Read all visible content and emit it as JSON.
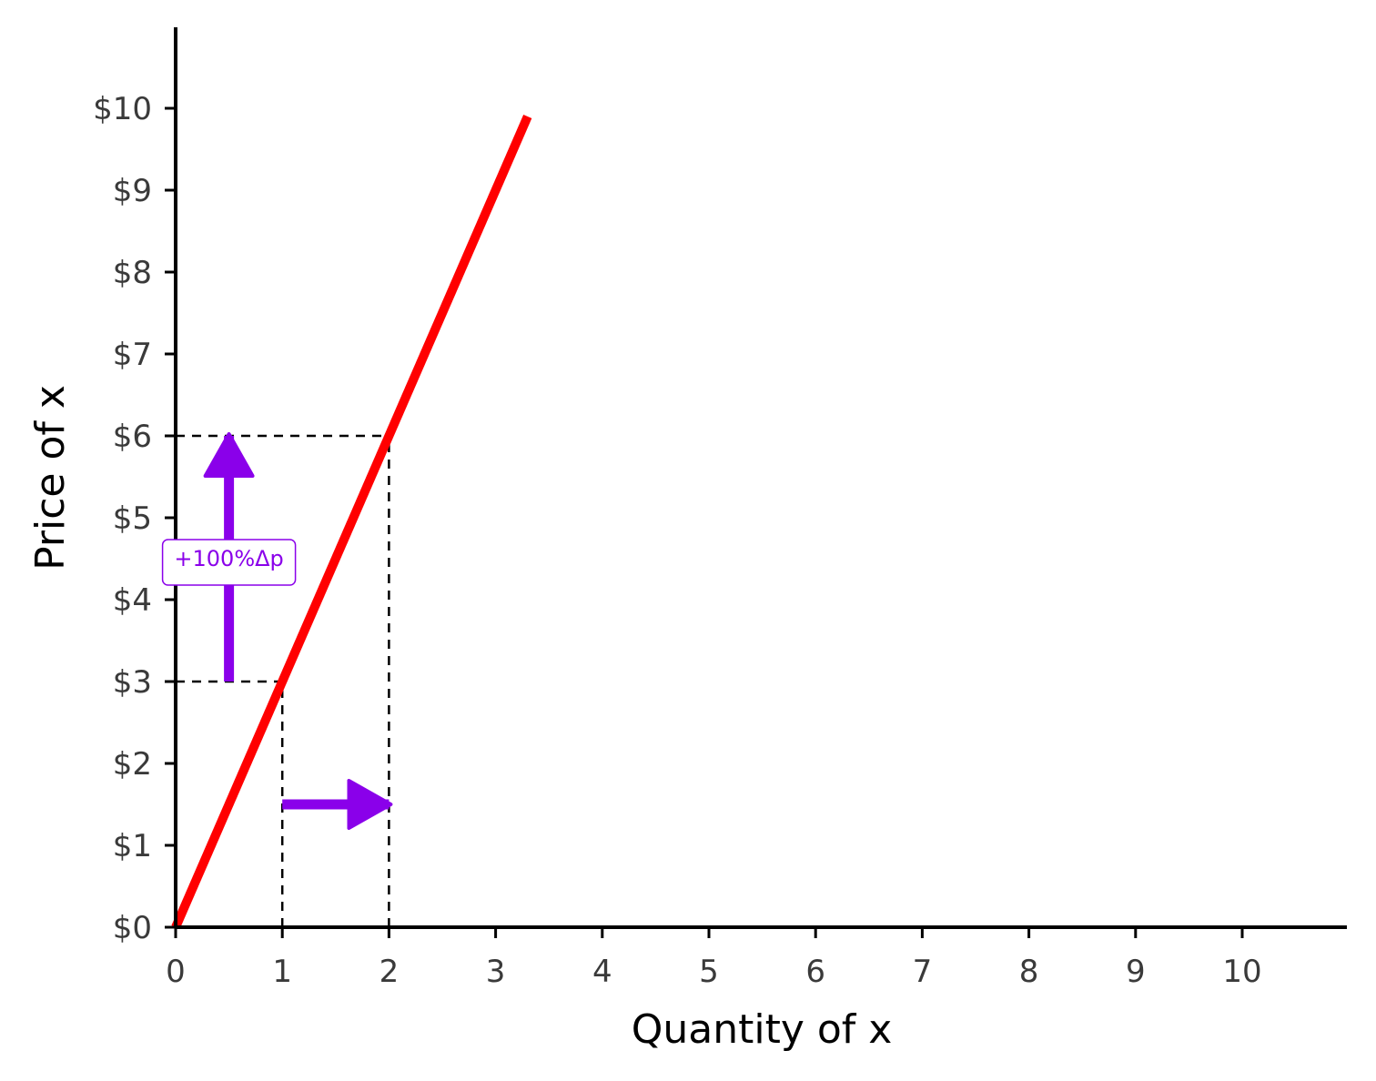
{
  "chart_data": {
    "type": "line",
    "xlabel": "Quantity of x",
    "ylabel": "Price of x",
    "xlim": [
      0,
      11
    ],
    "ylim": [
      0,
      11
    ],
    "x_ticks": [
      0,
      1,
      2,
      3,
      4,
      5,
      6,
      7,
      8,
      9,
      10
    ],
    "x_tick_labels": [
      "0",
      "1",
      "2",
      "3",
      "4",
      "5",
      "6",
      "7",
      "8",
      "9",
      "10"
    ],
    "y_ticks": [
      0,
      1,
      2,
      3,
      4,
      5,
      6,
      7,
      8,
      9,
      10
    ],
    "y_tick_labels": [
      "$0",
      "$1",
      "$2",
      "$3",
      "$4",
      "$5",
      "$6",
      "$7",
      "$8",
      "$9",
      "$10"
    ],
    "grid": false,
    "series": [
      {
        "x": [
          0,
          3.3
        ],
        "y": [
          0,
          9.9
        ],
        "color": "#ff0000"
      }
    ],
    "reference_lines": [
      {
        "x": [
          0,
          1
        ],
        "y": [
          3,
          3
        ],
        "style": "dashed"
      },
      {
        "x": [
          1,
          1
        ],
        "y": [
          0,
          3
        ],
        "style": "dashed"
      },
      {
        "x": [
          0,
          2
        ],
        "y": [
          6,
          6
        ],
        "style": "dashed"
      },
      {
        "x": [
          2,
          2
        ],
        "y": [
          0,
          6
        ],
        "style": "dashed"
      }
    ],
    "arrows": [
      {
        "from": [
          0.5,
          3
        ],
        "to": [
          0.5,
          6
        ],
        "color": "#8a00ea"
      },
      {
        "from": [
          1,
          1.5
        ],
        "to": [
          2,
          1.5
        ],
        "color": "#8a00ea"
      }
    ],
    "annotations": [
      {
        "text": "+100%Δp",
        "x": 0.5,
        "y": 4.5,
        "color": "#8a00ea"
      }
    ]
  }
}
